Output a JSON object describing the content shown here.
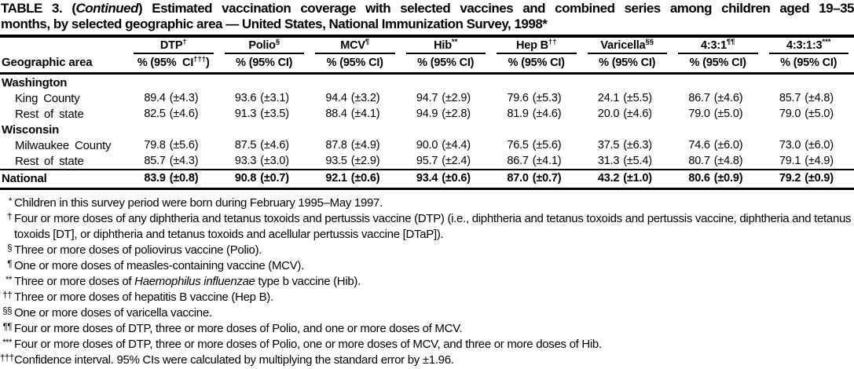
{
  "colors": {
    "ink": "#000000",
    "paper": "#ffffff"
  },
  "title": {
    "prefix": "TABLE 3. (",
    "continued": "Continued",
    "line1_rest": ") Estimated vaccination coverage with selected vaccines and combined series among children aged 19–35",
    "line2": "months, by selected geographic area — United States, National Immunization Survey, 1998*"
  },
  "table": {
    "geo_header": "Geographic area",
    "sub_label": "% (95% CI)",
    "sub_first_pre": "% (95%  CI",
    "sub_first_sup": "†††",
    "sub_first_close": ")",
    "columns": [
      {
        "name": "DTP",
        "sup": "†"
      },
      {
        "name": "Polio",
        "sup": "§"
      },
      {
        "name": "MCV",
        "sup": "¶"
      },
      {
        "name": "Hib",
        "sup": "**"
      },
      {
        "name": "Hep B",
        "sup": "††"
      },
      {
        "name": "Varicella",
        "sup": "§§"
      },
      {
        "name": "4:3:1",
        "sup": "¶¶"
      },
      {
        "name": "4:3:1:3",
        "sup": "***"
      }
    ],
    "rows": [
      {
        "kind": "group",
        "label": "Washington"
      },
      {
        "kind": "data",
        "label": "King County",
        "values": [
          "89.4",
          "93.6",
          "94.4",
          "94.7",
          "79.6",
          "24.1",
          "86.7",
          "85.7"
        ],
        "cis": [
          "(±4.3)",
          "(±3.1)",
          "(±3.2)",
          "(±2.9)",
          "(±5.3)",
          "(±5.5)",
          "(±4.6)",
          "(±4.8)"
        ]
      },
      {
        "kind": "data",
        "label": "Rest of state",
        "values": [
          "82.5",
          "91.3",
          "88.4",
          "94.9",
          "81.9",
          "20.0",
          "79.0",
          "79.0"
        ],
        "cis": [
          "(±4.6)",
          "(±3.5)",
          "(±4.1)",
          "(±2.8)",
          "(±4.6)",
          "(±4.6)",
          "(±5.0)",
          "(±5.0)"
        ]
      },
      {
        "kind": "group",
        "label": "Wisconsin"
      },
      {
        "kind": "data",
        "label": "Milwaukee County",
        "values": [
          "79.8",
          "87.5",
          "87.8",
          "90.0",
          "76.5",
          "37.5",
          "74.6",
          "73.0"
        ],
        "cis": [
          "(±5.6)",
          "(±4.6)",
          "(±4.9)",
          "(±4.4)",
          "(±5.6)",
          "(±6.3)",
          "(±6.0)",
          "(±6.0)"
        ]
      },
      {
        "kind": "data",
        "label": "Rest of state",
        "values": [
          "85.7",
          "93.3",
          "93.5",
          "95.7",
          "86.7",
          "31.3",
          "80.7",
          "79.1"
        ],
        "cis": [
          "(±4.3)",
          "(±3.0)",
          "(±2.9)",
          "(±2.4)",
          "(±4.1)",
          "(±5.4)",
          "(±4.8)",
          "(±4.9)"
        ]
      },
      {
        "kind": "total",
        "label": "National",
        "values": [
          "83.9",
          "90.8",
          "92.1",
          "93.4",
          "87.0",
          "43.2",
          "80.6",
          "79.2"
        ],
        "cis": [
          "(±0.8)",
          "(±0.7)",
          "(±0.6)",
          "(±0.6)",
          "(±0.7)",
          "(±1.0)",
          "(±0.9)",
          "(±0.9)"
        ]
      }
    ]
  },
  "footnotes": [
    {
      "marker": "*",
      "text": "Children in this survey period were born during February 1995–May 1997."
    },
    {
      "marker": "†",
      "text": "Four or more doses of any diphtheria and tetanus toxoids and pertussis vaccine (DTP) (i.e., diphtheria and tetanus toxoids and pertussis vaccine, diphtheria and tetanus toxoids [DT], or diphtheria and tetanus toxoids and acellular pertussis vaccine [DTaP])."
    },
    {
      "marker": "§",
      "text": "Three or more doses of poliovirus vaccine (Polio)."
    },
    {
      "marker": "¶",
      "text": "One or more doses of measles-containing vaccine (MCV)."
    },
    {
      "marker": "**",
      "pre": "Three or more doses of ",
      "italic": "Haemophilus influenzae",
      "post": " type b vaccine (Hib)."
    },
    {
      "marker": "††",
      "text": "Three or more doses of hepatitis B vaccine (Hep B)."
    },
    {
      "marker": "§§",
      "text": "One or more doses of varicella vaccine."
    },
    {
      "marker": "¶¶",
      "text": "Four or more doses of DTP, three or more doses of Polio, and one or more doses of MCV."
    },
    {
      "marker": "***",
      "text": "Four or more doses of DTP, three or more doses of Polio, one or more  doses of MCV, and three or more doses of Hib."
    },
    {
      "marker": "†††",
      "text": "Confidence interval. 95% CIs were calculated by multiplying the standard error by ±1.96."
    }
  ]
}
